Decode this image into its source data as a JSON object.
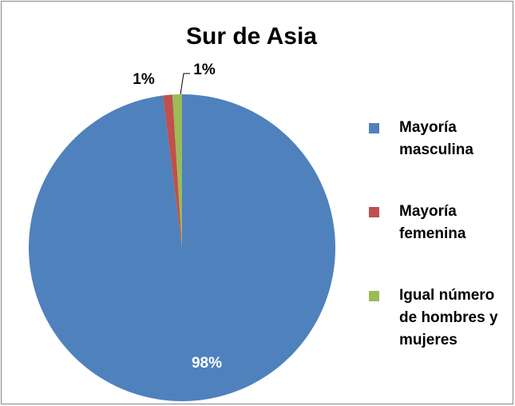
{
  "chart_data": {
    "type": "pie",
    "title": "Sur de Asia",
    "categories": [
      "Mayoría masculina",
      "Mayoría femenina",
      "Igual número de hombres y mujeres"
    ],
    "values": [
      98,
      1,
      1
    ],
    "value_labels": [
      "98%",
      "1%",
      "1%"
    ],
    "colors": [
      "#4f81bd",
      "#c0504d",
      "#9bbb59"
    ],
    "legend": "right"
  }
}
